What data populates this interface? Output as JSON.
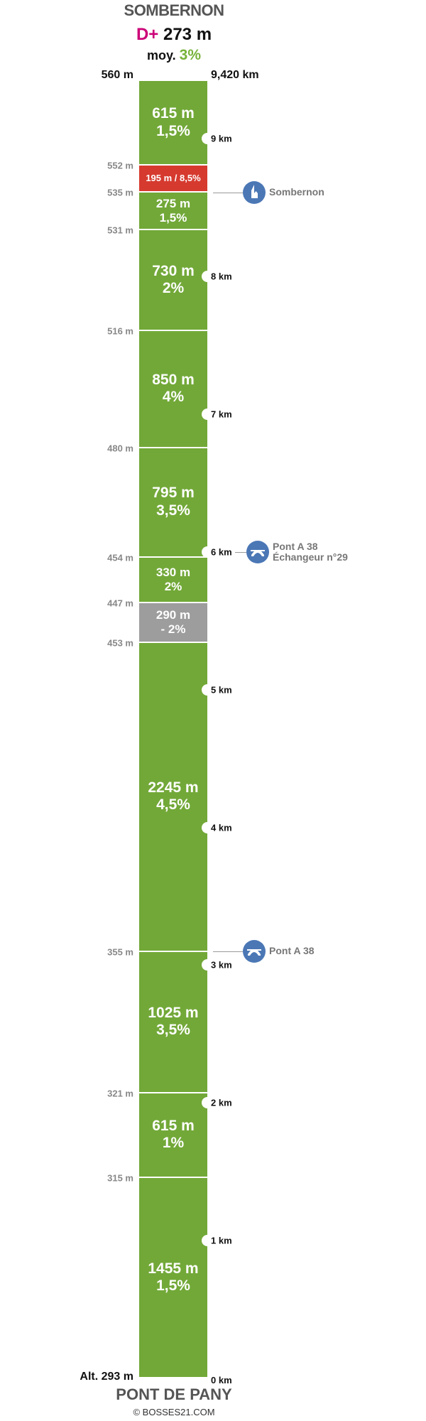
{
  "header": {
    "start_name": "SOMBERNON",
    "dplus_prefix": "D+",
    "dplus_value": "273 m",
    "avg_prefix": "moy.",
    "avg_value": "3%",
    "top_altitude": "560 m",
    "top_distance": "9,420 km"
  },
  "footer": {
    "bottom_altitude": "Alt. 293 m",
    "bottom_distance": "0 km",
    "end_name": "PONT DE PANY",
    "credit": "© BOSSES21.COM"
  },
  "colors": {
    "green": "#72a838",
    "red": "#d63a2f",
    "gray": "#9d9d9d",
    "poi_blue": "#4b77b5",
    "dplus_magenta": "#cc0077",
    "avg_green": "#77b23a"
  },
  "chart_data": {
    "type": "bar",
    "total_distance_km": 9.42,
    "start_altitude_m": 293,
    "end_altitude_m": 560,
    "segments": [
      {
        "length": "615 m",
        "grade": "1,5%",
        "length_m": 615,
        "grade_pct": 1.5,
        "kind": "climb"
      },
      {
        "length": "195 m / 8,5%",
        "grade": "",
        "length_m": 195,
        "grade_pct": 8.5,
        "kind": "steep"
      },
      {
        "length": "275 m",
        "grade": "1,5%",
        "length_m": 275,
        "grade_pct": 1.5,
        "kind": "climb"
      },
      {
        "length": "730 m",
        "grade": "2%",
        "length_m": 730,
        "grade_pct": 2,
        "kind": "climb"
      },
      {
        "length": "850 m",
        "grade": "4%",
        "length_m": 850,
        "grade_pct": 4,
        "kind": "climb"
      },
      {
        "length": "795 m",
        "grade": "3,5%",
        "length_m": 795,
        "grade_pct": 3.5,
        "kind": "climb"
      },
      {
        "length": "330 m",
        "grade": "2%",
        "length_m": 330,
        "grade_pct": 2,
        "kind": "climb"
      },
      {
        "length": "290 m",
        "grade": "- 2%",
        "length_m": 290,
        "grade_pct": -2,
        "kind": "descent"
      },
      {
        "length": "2245 m",
        "grade": "4,5%",
        "length_m": 2245,
        "grade_pct": 4.5,
        "kind": "climb"
      },
      {
        "length": "1025 m",
        "grade": "3,5%",
        "length_m": 1025,
        "grade_pct": 3.5,
        "kind": "climb"
      },
      {
        "length": "615 m",
        "grade": "1%",
        "length_m": 615,
        "grade_pct": 1,
        "kind": "climb"
      },
      {
        "length": "1455 m",
        "grade": "1,5%",
        "length_m": 1455,
        "grade_pct": 1.5,
        "kind": "climb"
      }
    ],
    "boundary_altitudes": [
      {
        "label": "552 m",
        "km": 8.805
      },
      {
        "label": "535 m",
        "km": 8.61
      },
      {
        "label": "531 m",
        "km": 8.335
      },
      {
        "label": "516 m",
        "km": 7.605
      },
      {
        "label": "480 m",
        "km": 6.755
      },
      {
        "label": "454 m",
        "km": 5.96
      },
      {
        "label": "447 m",
        "km": 5.63
      },
      {
        "label": "453 m",
        "km": 5.34
      },
      {
        "label": "355 m",
        "km": 3.095
      },
      {
        "label": "321 m",
        "km": 2.07
      },
      {
        "label": "315 m",
        "km": 1.455
      }
    ],
    "km_markers": [
      {
        "label": "9 km",
        "km": 9
      },
      {
        "label": "8 km",
        "km": 8
      },
      {
        "label": "7 km",
        "km": 7
      },
      {
        "label": "6 km",
        "km": 6
      },
      {
        "label": "5 km",
        "km": 5
      },
      {
        "label": "4 km",
        "km": 4
      },
      {
        "label": "3 km",
        "km": 3
      },
      {
        "label": "2 km",
        "km": 2
      },
      {
        "label": "1 km",
        "km": 1
      }
    ],
    "pois": [
      {
        "label": "Sombernon",
        "label2": "",
        "icon": "church-icon",
        "km": 8.61
      },
      {
        "label": "Pont A 38",
        "label2": "Échangeur n°29",
        "icon": "bridge-icon",
        "km": 6.0
      },
      {
        "label": "Pont A 38",
        "label2": "",
        "icon": "bridge-icon",
        "km": 3.1
      }
    ]
  }
}
